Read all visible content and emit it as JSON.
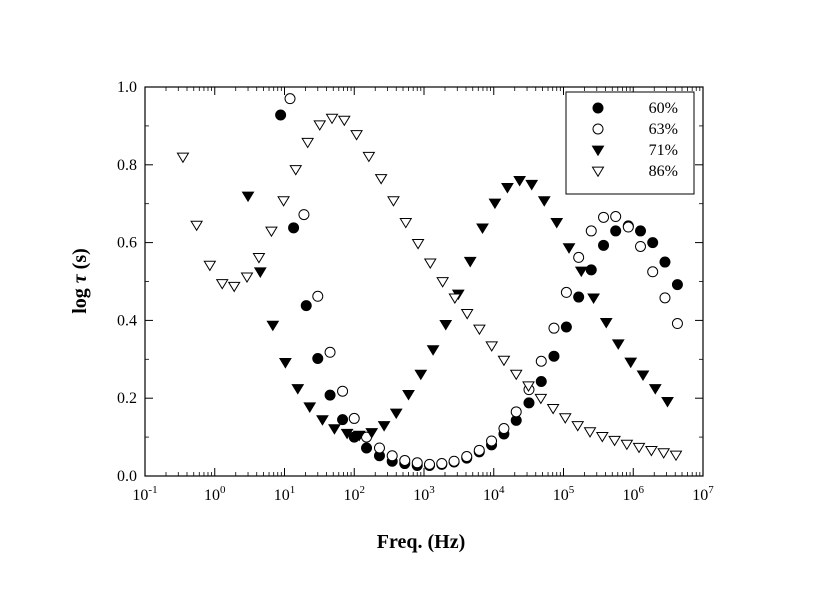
{
  "chart_data": {
    "type": "scatter",
    "xlabel": "Freq. (Hz)",
    "ylabel_prefix": "log ",
    "ylabel_symbol": "τ",
    "ylabel_suffix": " (s)",
    "x_scale": "log",
    "xlim": [
      0.1,
      10000000
    ],
    "ylim": [
      0.0,
      1.0
    ],
    "grid": false,
    "legend_position": "top-right",
    "x_tick_labels": [
      {
        "base": "10",
        "exp": "-1",
        "value": 0.1
      },
      {
        "base": "10",
        "exp": "0",
        "value": 1
      },
      {
        "base": "10",
        "exp": "1",
        "value": 10
      },
      {
        "base": "10",
        "exp": "2",
        "value": 100
      },
      {
        "base": "10",
        "exp": "3",
        "value": 1000
      },
      {
        "base": "10",
        "exp": "4",
        "value": 10000
      },
      {
        "base": "10",
        "exp": "5",
        "value": 100000
      },
      {
        "base": "10",
        "exp": "6",
        "value": 1000000
      },
      {
        "base": "10",
        "exp": "7",
        "value": 10000000
      }
    ],
    "y_tick_labels": [
      "0.0",
      "0.2",
      "0.4",
      "0.6",
      "0.8",
      "1.0"
    ],
    "y_tick_values": [
      0.0,
      0.2,
      0.4,
      0.6,
      0.8,
      1.0
    ],
    "series": [
      {
        "name": "60%",
        "marker": "circle-filled",
        "points": [
          [
            8.8,
            0.928
          ],
          [
            13.5,
            0.638
          ],
          [
            20.5,
            0.438
          ],
          [
            30,
            0.302
          ],
          [
            45,
            0.208
          ],
          [
            68,
            0.145
          ],
          [
            100,
            0.1
          ],
          [
            150,
            0.072
          ],
          [
            230,
            0.052
          ],
          [
            350,
            0.038
          ],
          [
            530,
            0.032
          ],
          [
            800,
            0.027
          ],
          [
            1200,
            0.027
          ],
          [
            1800,
            0.03
          ],
          [
            2700,
            0.036
          ],
          [
            4100,
            0.046
          ],
          [
            6200,
            0.062
          ],
          [
            9300,
            0.08
          ],
          [
            14000,
            0.108
          ],
          [
            21000,
            0.143
          ],
          [
            32000,
            0.188
          ],
          [
            48000,
            0.243
          ],
          [
            73000,
            0.308
          ],
          [
            110000,
            0.383
          ],
          [
            165000,
            0.46
          ],
          [
            250000,
            0.53
          ],
          [
            375000,
            0.593
          ],
          [
            560000,
            0.63
          ],
          [
            850000,
            0.643
          ],
          [
            1270000,
            0.63
          ],
          [
            1900000,
            0.6
          ],
          [
            2850000,
            0.55
          ],
          [
            4300000,
            0.492
          ]
        ]
      },
      {
        "name": "63%",
        "marker": "circle-open",
        "points": [
          [
            12,
            0.97
          ],
          [
            19,
            0.672
          ],
          [
            30,
            0.462
          ],
          [
            45,
            0.318
          ],
          [
            68,
            0.218
          ],
          [
            100,
            0.148
          ],
          [
            150,
            0.1
          ],
          [
            230,
            0.072
          ],
          [
            350,
            0.052
          ],
          [
            530,
            0.04
          ],
          [
            800,
            0.034
          ],
          [
            1200,
            0.03
          ],
          [
            1800,
            0.032
          ],
          [
            2700,
            0.038
          ],
          [
            4100,
            0.05
          ],
          [
            6200,
            0.066
          ],
          [
            9300,
            0.09
          ],
          [
            14000,
            0.122
          ],
          [
            21000,
            0.165
          ],
          [
            32000,
            0.222
          ],
          [
            48000,
            0.295
          ],
          [
            73000,
            0.38
          ],
          [
            110000,
            0.472
          ],
          [
            165000,
            0.562
          ],
          [
            250000,
            0.63
          ],
          [
            375000,
            0.665
          ],
          [
            560000,
            0.667
          ],
          [
            850000,
            0.64
          ],
          [
            1270000,
            0.59
          ],
          [
            1900000,
            0.525
          ],
          [
            2850000,
            0.458
          ],
          [
            4300000,
            0.392
          ]
        ]
      },
      {
        "name": "71%",
        "marker": "triangle-down-filled",
        "points": [
          [
            3.0,
            0.72
          ],
          [
            4.5,
            0.525
          ],
          [
            6.8,
            0.388
          ],
          [
            10.3,
            0.292
          ],
          [
            15.5,
            0.225
          ],
          [
            23,
            0.178
          ],
          [
            35,
            0.145
          ],
          [
            52,
            0.122
          ],
          [
            79,
            0.11
          ],
          [
            118,
            0.105
          ],
          [
            178,
            0.112
          ],
          [
            268,
            0.13
          ],
          [
            400,
            0.162
          ],
          [
            600,
            0.21
          ],
          [
            900,
            0.262
          ],
          [
            1350,
            0.325
          ],
          [
            2050,
            0.39
          ],
          [
            3100,
            0.468
          ],
          [
            4600,
            0.552
          ],
          [
            6900,
            0.638
          ],
          [
            10400,
            0.702
          ],
          [
            15700,
            0.742
          ],
          [
            23500,
            0.76
          ],
          [
            35000,
            0.75
          ],
          [
            53000,
            0.708
          ],
          [
            80000,
            0.652
          ],
          [
            120000,
            0.587
          ],
          [
            180000,
            0.527
          ],
          [
            270000,
            0.458
          ],
          [
            410000,
            0.395
          ],
          [
            610000,
            0.34
          ],
          [
            920000,
            0.293
          ],
          [
            1380000,
            0.26
          ],
          [
            2070000,
            0.225
          ],
          [
            3100000,
            0.192
          ]
        ]
      },
      {
        "name": "86%",
        "marker": "triangle-down-open",
        "points": [
          [
            0.35,
            0.82
          ],
          [
            0.55,
            0.645
          ],
          [
            0.85,
            0.542
          ],
          [
            1.28,
            0.495
          ],
          [
            1.9,
            0.488
          ],
          [
            2.9,
            0.512
          ],
          [
            4.3,
            0.562
          ],
          [
            6.5,
            0.63
          ],
          [
            9.7,
            0.708
          ],
          [
            14.5,
            0.788
          ],
          [
            21.5,
            0.858
          ],
          [
            32,
            0.903
          ],
          [
            48,
            0.92
          ],
          [
            72,
            0.915
          ],
          [
            108,
            0.878
          ],
          [
            162,
            0.822
          ],
          [
            243,
            0.765
          ],
          [
            365,
            0.708
          ],
          [
            548,
            0.652
          ],
          [
            822,
            0.598
          ],
          [
            1230,
            0.548
          ],
          [
            1850,
            0.5
          ],
          [
            2770,
            0.458
          ],
          [
            4160,
            0.418
          ],
          [
            6230,
            0.378
          ],
          [
            9350,
            0.335
          ],
          [
            14000,
            0.298
          ],
          [
            21000,
            0.262
          ],
          [
            31500,
            0.232
          ],
          [
            47300,
            0.2
          ],
          [
            71000,
            0.174
          ],
          [
            106000,
            0.15
          ],
          [
            160000,
            0.13
          ],
          [
            240000,
            0.114
          ],
          [
            360000,
            0.102
          ],
          [
            540000,
            0.092
          ],
          [
            810000,
            0.082
          ],
          [
            1210000,
            0.074
          ],
          [
            1820000,
            0.066
          ],
          [
            2730000,
            0.06
          ],
          [
            4100000,
            0.054
          ]
        ]
      }
    ]
  }
}
